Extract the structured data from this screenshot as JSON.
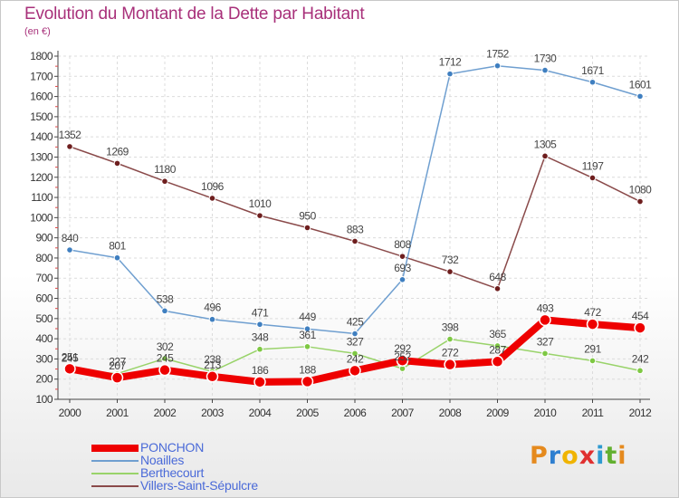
{
  "header": {
    "title": "Evolution du Montant de la Dette par Habitant",
    "unit": "(en €)"
  },
  "logo": {
    "text": "Proxiti",
    "letter_colors": [
      "#e58a1e",
      "#2e7fd0",
      "#f0b400",
      "#e03030",
      "#2e9ad0",
      "#62b030",
      "#e58a1e"
    ]
  },
  "chart_data": {
    "type": "line",
    "title": "Evolution du Montant de la Dette par Habitant",
    "ylabel": "(en €)",
    "xlabel": "",
    "x": [
      "2000",
      "2001",
      "2002",
      "2003",
      "2004",
      "2005",
      "2006",
      "2007",
      "2008",
      "2009",
      "2010",
      "2011",
      "2012"
    ],
    "ylim": [
      100,
      1800
    ],
    "yticks": [
      100,
      200,
      300,
      400,
      500,
      600,
      700,
      800,
      900,
      1000,
      1100,
      1200,
      1300,
      1400,
      1500,
      1600,
      1700,
      1800
    ],
    "grid": true,
    "legend_position": "bottom-left",
    "series": [
      {
        "name": "PONCHON",
        "color": "#ee0000",
        "marker_color": "#ee0000",
        "values": [
          251,
          207,
          245,
          213,
          186,
          188,
          242,
          292,
          272,
          287,
          493,
          472,
          454
        ]
      },
      {
        "name": "Noailles",
        "color": "#6f9fd0",
        "marker_color": "#3f7fc0",
        "values": [
          840,
          801,
          538,
          496,
          471,
          449,
          425,
          693,
          1712,
          1752,
          1730,
          1671,
          1601
        ]
      },
      {
        "name": "Berthecourt",
        "color": "#99d36a",
        "marker_color": "#7ec843",
        "values": [
          245,
          227,
          302,
          238,
          348,
          361,
          327,
          252,
          398,
          365,
          327,
          291,
          242
        ]
      },
      {
        "name": "Villers-Saint-Sépulcre",
        "color": "#8a4a4a",
        "marker_color": "#6e1e1e",
        "values": [
          1352,
          1269,
          1180,
          1096,
          1010,
          950,
          883,
          808,
          732,
          648,
          1305,
          1197,
          1080
        ]
      }
    ]
  }
}
